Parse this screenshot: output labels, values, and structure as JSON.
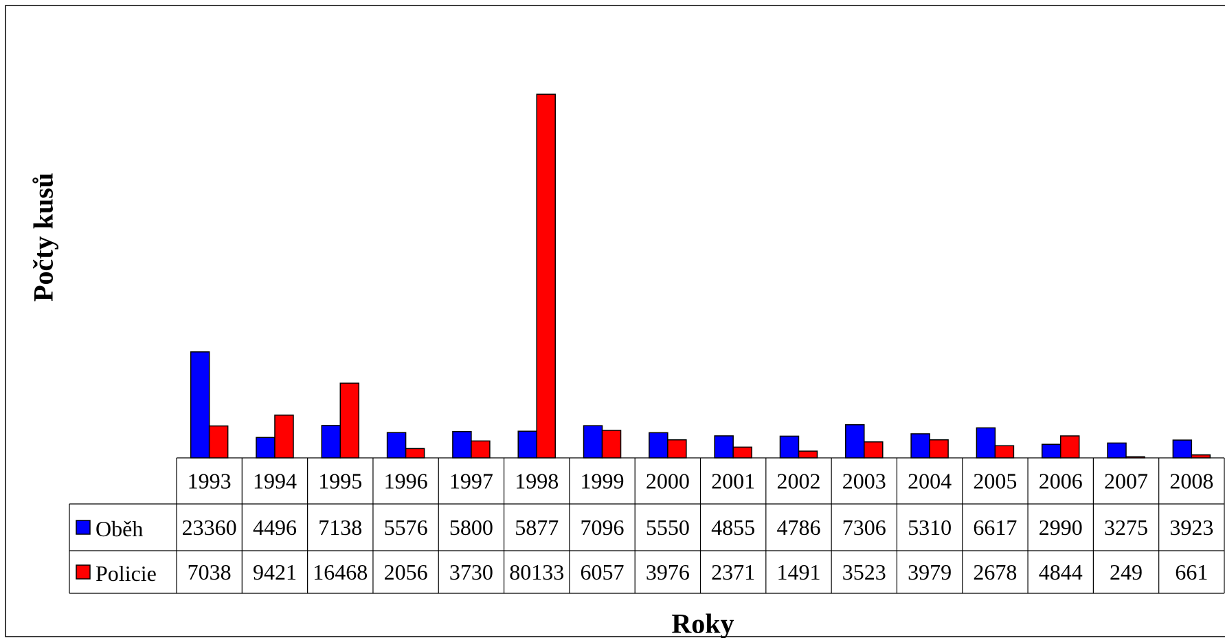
{
  "chart_data": {
    "type": "bar",
    "x_label": "Roky",
    "y_label": "Počty kusů",
    "categories": [
      "1993",
      "1994",
      "1995",
      "1996",
      "1997",
      "1998",
      "1999",
      "2000",
      "2001",
      "2002",
      "2003",
      "2004",
      "2005",
      "2006",
      "2007",
      "2008"
    ],
    "series": [
      {
        "name": "Oběh",
        "color": "#0000ff",
        "values": [
          23360,
          4496,
          7138,
          5576,
          5800,
          5877,
          7096,
          5550,
          4855,
          4786,
          7306,
          5310,
          6617,
          2990,
          3275,
          3923
        ]
      },
      {
        "name": "Policie",
        "color": "#ff0000",
        "values": [
          7038,
          9421,
          16468,
          2056,
          3730,
          80133,
          6057,
          3976,
          2371,
          1491,
          3523,
          3979,
          2678,
          4844,
          249,
          661
        ]
      }
    ],
    "ylim": [
      0,
      90000
    ]
  }
}
